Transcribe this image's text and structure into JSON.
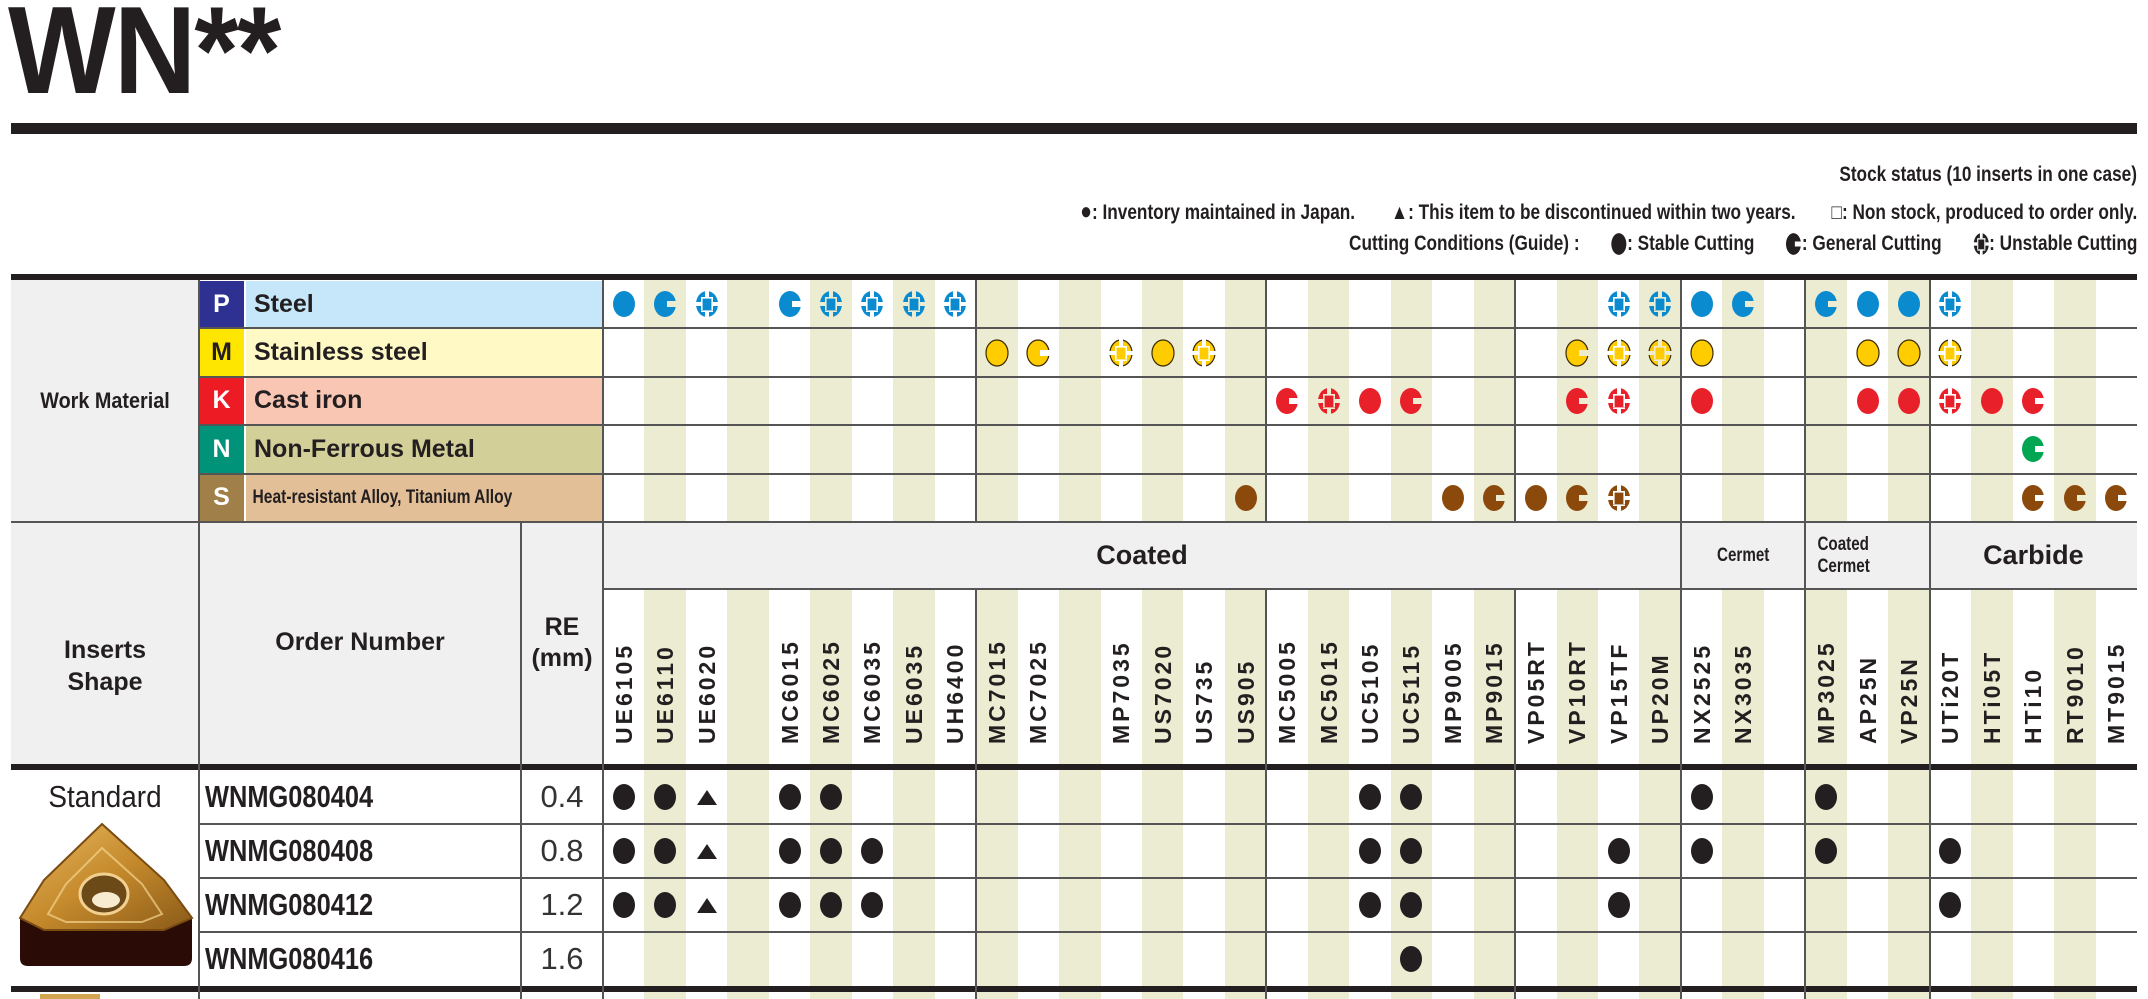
{
  "title": "WN**",
  "legend": {
    "stock_status": "Stock status (10 inserts in one case)",
    "inventory": ": Inventory maintained in Japan.",
    "discontinued": ": This item to be discontinued within two years.",
    "non_stock": ": Non stock, produced to order only.",
    "cutting_label": "Cutting Conditions (Guide) :",
    "stable": ": Stable Cutting",
    "general": ": General Cutting",
    "unstable": ": Unstable Cutting"
  },
  "work_material_label": "Work Material",
  "materials": [
    {
      "code": "P",
      "name": "Steel",
      "badge": "#2e3192",
      "badge_text": "#ffffff",
      "bg": "#c6e7f9",
      "mark": "#0a8bd0",
      "outline": "none",
      "marks": {
        "UE6105": "stable",
        "UE6110": "general",
        "UE6020": "unstable",
        "MC6015": "general",
        "MC6025": "unstable",
        "MC6035": "unstable",
        "UE6035": "unstable",
        "UH6400": "unstable",
        "VP15TF": "unstable",
        "UP20M": "unstable",
        "NX2525": "stable",
        "NX3035": "general",
        "MP3025": "general",
        "AP25N": "stable",
        "VP25N": "stable",
        "UTi20T": "unstable"
      }
    },
    {
      "code": "M",
      "name": "Stainless steel",
      "badge": "#ffe600",
      "badge_text": "#231f20",
      "bg": "#fff9c6",
      "mark": "#ffcc00",
      "outline": "#3a2a00",
      "marks": {
        "MC7015": "stable",
        "MC7025": "general",
        "MP7035": "unstable",
        "US7020": "stable",
        "US735": "unstable",
        "VP10RT": "general",
        "VP15TF": "unstable",
        "UP20M": "unstable",
        "NX2525": "stable",
        "AP25N": "stable",
        "VP25N": "stable",
        "UTi20T": "unstable"
      }
    },
    {
      "code": "K",
      "name": "Cast iron",
      "badge": "#ed1c24",
      "badge_text": "#ffffff",
      "bg": "#f9c6b4",
      "mark": "#e8202a",
      "outline": "none",
      "marks": {
        "MC5005": "general",
        "MC5015": "unstable",
        "UC5105": "stable",
        "UC5115": "general",
        "VP10RT": "general",
        "VP15TF": "unstable",
        "NX2525": "stable",
        "AP25N": "stable",
        "VP25N": "stable",
        "UTi20T": "unstable",
        "HTi05T": "stable",
        "HTi10": "general"
      }
    },
    {
      "code": "N",
      "name": "Non-Ferrous Metal",
      "badge": "#00937a",
      "badge_text": "#ffffff",
      "bg": "#d3cf98",
      "mark": "#00a651",
      "outline": "none",
      "marks": {
        "HTi10": "general"
      }
    },
    {
      "code": "S",
      "name": "Heat-resistant Alloy, Titanium Alloy",
      "badge": "#a08048",
      "badge_text": "#ffffff",
      "bg": "#e3bf98",
      "mark": "#8b4a0c",
      "outline": "none",
      "marks": {
        "US905": "stable",
        "MP9005": "stable",
        "MP9015": "general",
        "VP05RT": "stable",
        "VP10RT": "general",
        "VP15TF": "unstable",
        "HTi10": "general",
        "RT9010": "general",
        "MT9015": "general"
      }
    }
  ],
  "header": {
    "inserts_shape": [
      "Inserts",
      "Shape"
    ],
    "order_number": "Order Number",
    "re": [
      "RE",
      "(mm)"
    ]
  },
  "groups": [
    {
      "label": "Coated",
      "span": 26
    },
    {
      "label": "Cermet",
      "span": 3
    },
    {
      "label": "Coated Cermet",
      "span": 3
    },
    {
      "label": "Carbide",
      "span": 5
    }
  ],
  "grades": [
    "UE6105",
    "UE6110",
    "UE6020",
    "",
    "MC6015",
    "MC6025",
    "MC6035",
    "UE6035",
    "UH6400",
    "MC7015",
    "MC7025",
    "",
    "MP7035",
    "US7020",
    "US735",
    "US905",
    "MC5005",
    "MC5015",
    "UC5105",
    "UC5115",
    "MP9005",
    "MP9015",
    "VP05RT",
    "VP10RT",
    "VP15TF",
    "UP20M",
    "NX2525",
    "NX3035",
    "",
    "MP3025",
    "AP25N",
    "VP25N",
    "UTi20T",
    "HTi05T",
    "HTi10",
    "RT9010",
    "MT9015"
  ],
  "shape_label": "Standard",
  "rows": [
    {
      "order": "WNMG080404",
      "re": "0.4",
      "stock": {
        "UE6105": "stock",
        "UE6110": "stock",
        "UE6020": "discontinued",
        "MC6015": "stock",
        "MC6025": "stock",
        "UC5105": "stock",
        "UC5115": "stock",
        "NX2525": "stock",
        "MP3025": "stock"
      }
    },
    {
      "order": "WNMG080408",
      "re": "0.8",
      "stock": {
        "UE6105": "stock",
        "UE6110": "stock",
        "UE6020": "discontinued",
        "MC6015": "stock",
        "MC6025": "stock",
        "MC6035": "stock",
        "UC5105": "stock",
        "UC5115": "stock",
        "VP15TF": "stock",
        "NX2525": "stock",
        "MP3025": "stock",
        "UTi20T": "stock"
      }
    },
    {
      "order": "WNMG080412",
      "re": "1.2",
      "stock": {
        "UE6105": "stock",
        "UE6110": "stock",
        "UE6020": "discontinued",
        "MC6015": "stock",
        "MC6025": "stock",
        "MC6035": "stock",
        "UC5105": "stock",
        "UC5115": "stock",
        "VP15TF": "stock",
        "UTi20T": "stock"
      }
    },
    {
      "order": "WNMG080416",
      "re": "1.6",
      "stock": {
        "UC5115": "stock"
      }
    }
  ]
}
